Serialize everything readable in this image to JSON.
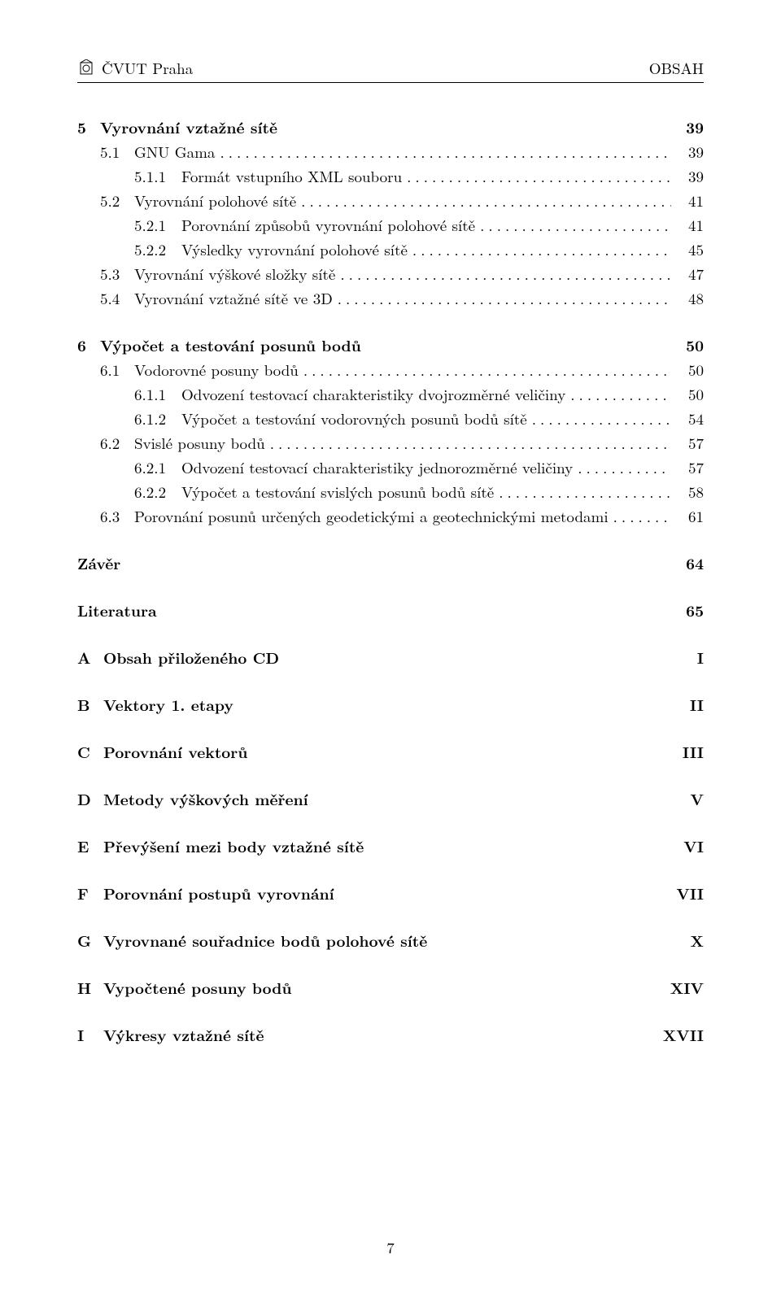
{
  "header": {
    "left": "ČVUT Praha",
    "right": "OBSAH"
  },
  "chapters": [
    {
      "num": "5",
      "title": "Vyrovnání vztažné sítě",
      "page": "39",
      "bold": true,
      "level": 0,
      "dots": false,
      "children": [
        {
          "num": "5.1",
          "title": "GNU Gama",
          "page": "39",
          "level": 1,
          "dots": true,
          "children": [
            {
              "num": "5.1.1",
              "title": "Formát vstupního XML souboru",
              "page": "39",
              "level": 2,
              "dots": true
            }
          ]
        },
        {
          "num": "5.2",
          "title": "Vyrovnání polohové sítě",
          "page": "41",
          "level": 1,
          "dots": true,
          "children": [
            {
              "num": "5.2.1",
              "title": "Porovnání způsobů vyrovnání polohové sítě",
              "page": "41",
              "level": 2,
              "dots": true
            },
            {
              "num": "5.2.2",
              "title": "Výsledky vyrovnání polohové sítě",
              "page": "45",
              "level": 2,
              "dots": true
            }
          ]
        },
        {
          "num": "5.3",
          "title": "Vyrovnání výškové složky sítě",
          "page": "47",
          "level": 1,
          "dots": true
        },
        {
          "num": "5.4",
          "title": "Vyrovnání vztažné sítě ve 3D",
          "page": "48",
          "level": 1,
          "dots": true
        }
      ]
    },
    {
      "num": "6",
      "title": "Výpočet a testování posunů bodů",
      "page": "50",
      "bold": true,
      "level": 0,
      "dots": false,
      "children": [
        {
          "num": "6.1",
          "title": "Vodorovné posuny bodů",
          "page": "50",
          "level": 1,
          "dots": true,
          "children": [
            {
              "num": "6.1.1",
              "title": "Odvození testovací charakteristiky dvojrozměrné veličiny",
              "page": "50",
              "level": 2,
              "dots": true
            },
            {
              "num": "6.1.2",
              "title": "Výpočet a testování vodorovných posunů bodů sítě",
              "page": "54",
              "level": 2,
              "dots": true
            }
          ]
        },
        {
          "num": "6.2",
          "title": "Svislé posuny bodů",
          "page": "57",
          "level": 1,
          "dots": true,
          "children": [
            {
              "num": "6.2.1",
              "title": "Odvození testovací charakteristiky jednorozměrné veličiny",
              "page": "57",
              "level": 2,
              "dots": true
            },
            {
              "num": "6.2.2",
              "title": "Výpočet a testování svislých posunů bodů sítě",
              "page": "58",
              "level": 2,
              "dots": true
            }
          ]
        },
        {
          "num": "6.3",
          "title": "Porovnání posunů určených geodetickými a geotechnickými metodami",
          "page": "61",
          "level": 1,
          "dots": true
        }
      ]
    }
  ],
  "standalone": [
    {
      "title": "Závěr",
      "page": "64",
      "bold": true
    },
    {
      "title": "Literatura",
      "page": "65",
      "bold": true
    }
  ],
  "appendices": [
    {
      "num": "A",
      "title": "Obsah přiloženého CD",
      "page": "I"
    },
    {
      "num": "B",
      "title": "Vektory 1. etapy",
      "page": "II"
    },
    {
      "num": "C",
      "title": "Porovnání vektorů",
      "page": "III"
    },
    {
      "num": "D",
      "title": "Metody výškových měření",
      "page": "V"
    },
    {
      "num": "E",
      "title": "Převýšení mezi body vztažné sítě",
      "page": "VI"
    },
    {
      "num": "F",
      "title": "Porovnání postupů vyrovnání",
      "page": "VII"
    },
    {
      "num": "G",
      "title": "Vyrovnané souřadnice bodů polohové sítě",
      "page": "X"
    },
    {
      "num": "H",
      "title": "Vypočtené posuny bodů",
      "page": "XIV"
    },
    {
      "num": "I",
      "title": "Výkresy vztažné sítě",
      "page": "XVII"
    }
  ],
  "footer_page": "7",
  "colors": {
    "text": "#000000",
    "background": "#ffffff"
  },
  "typography": {
    "body_fontsize": 19,
    "family": "serif"
  }
}
